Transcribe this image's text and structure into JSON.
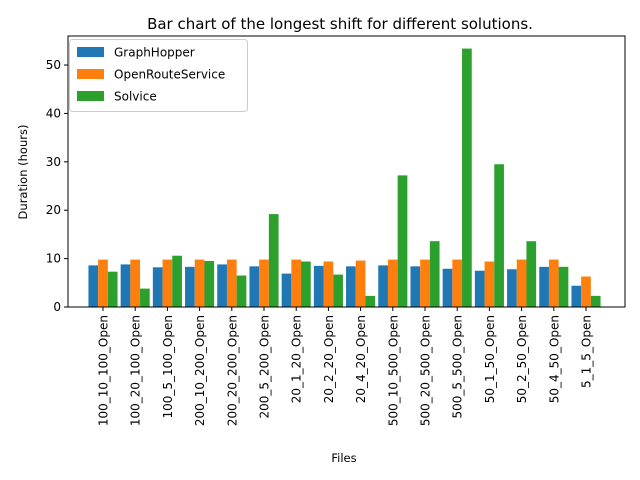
{
  "chart_data": {
    "type": "bar",
    "title": "Bar chart of the longest shift for different solutions.",
    "xlabel": "Files",
    "ylabel": "Duration (hours)",
    "ylim": [
      0,
      56
    ],
    "yticks": [
      0,
      10,
      20,
      30,
      40,
      50
    ],
    "legend_placement": "top-left",
    "grid": false,
    "categories": [
      "100_10_100_Open",
      "100_20_100_Open",
      "100_5_100_Open",
      "200_10_200_Open",
      "200_20_200_Open",
      "200_5_200_Open",
      "20_1_20_Open",
      "20_2_20_Open",
      "20_4_20_Open",
      "500_10_500_Open",
      "500_20_500_Open",
      "500_5_500_Open",
      "50_1_50_Open",
      "50_2_50_Open",
      "50_4_50_Open",
      "5_1_5_Open"
    ],
    "series": [
      {
        "name": "GraphHopper",
        "color": "#1f77b4",
        "values": [
          8.6,
          8.8,
          8.2,
          8.3,
          8.8,
          8.4,
          6.9,
          8.5,
          8.4,
          8.6,
          8.4,
          7.9,
          7.5,
          7.8,
          8.3,
          4.4
        ]
      },
      {
        "name": "OpenRouteService",
        "color": "#ff7f0e",
        "values": [
          9.8,
          9.8,
          9.8,
          9.8,
          9.8,
          9.8,
          9.8,
          9.4,
          9.6,
          9.8,
          9.8,
          9.8,
          9.4,
          9.8,
          9.8,
          6.3
        ]
      },
      {
        "name": "Solvice",
        "color": "#2ca02c",
        "values": [
          7.3,
          3.8,
          10.6,
          9.5,
          6.5,
          19.2,
          9.4,
          6.7,
          2.3,
          27.2,
          13.6,
          53.4,
          29.5,
          13.6,
          8.3,
          2.3
        ]
      }
    ]
  }
}
